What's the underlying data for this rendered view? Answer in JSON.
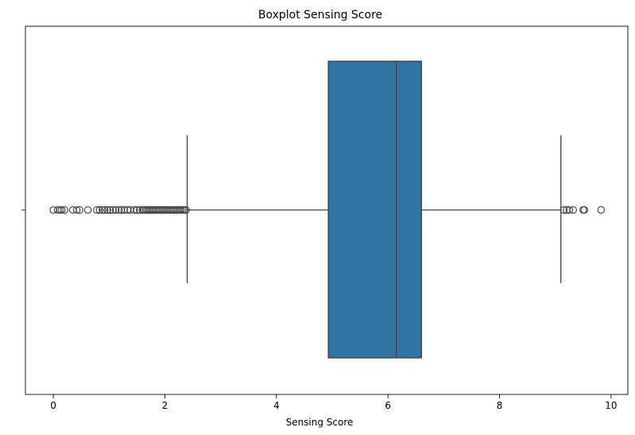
{
  "chart_data": {
    "type": "box",
    "title": "Boxplot Sensing Score",
    "xlabel": "Sensing Score",
    "ylabel": "",
    "xlim": [
      -0.5,
      10.3
    ],
    "x_ticks": [
      0,
      2,
      4,
      6,
      8,
      10
    ],
    "x_tick_labels": [
      "0",
      "2",
      "4",
      "6",
      "8",
      "10"
    ],
    "grid": false,
    "orientation": "horizontal",
    "box": {
      "whisker_low": 2.4,
      "q1": 4.93,
      "median": 6.15,
      "q3": 6.6,
      "whisker_high": 9.1
    },
    "outliers": [
      0.0,
      0.08,
      0.12,
      0.15,
      0.2,
      0.35,
      0.42,
      0.47,
      0.62,
      0.78,
      0.83,
      0.88,
      0.92,
      0.97,
      1.02,
      1.07,
      1.12,
      1.18,
      1.22,
      1.27,
      1.33,
      1.38,
      1.45,
      1.5,
      1.55,
      1.6,
      1.63,
      1.66,
      1.69,
      1.72,
      1.75,
      1.78,
      1.81,
      1.84,
      1.87,
      1.9,
      1.93,
      1.96,
      1.99,
      2.02,
      2.05,
      2.08,
      2.11,
      2.14,
      2.17,
      2.2,
      2.23,
      2.26,
      2.29,
      2.32,
      2.35,
      2.38,
      9.15,
      9.2,
      9.25,
      9.32,
      9.5,
      9.52,
      9.82
    ],
    "colors": {
      "box_fill": "#3274a1",
      "line": "#3f3f3f",
      "frame": "#000000"
    }
  }
}
